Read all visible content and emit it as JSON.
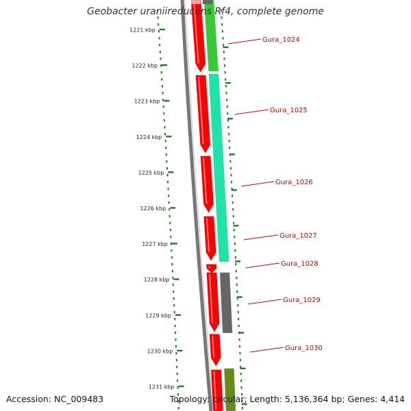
{
  "title": "Geobacter uraniireducens Rf4, complete genome",
  "accession": "Accession: NC_009483",
  "summary": "Topology: circular; Length: 5,136,364 bp; Genes: 4,414",
  "colors": {
    "forward_cds": "#ff0000",
    "backbone": "#777777",
    "tick": "#1f7a1f",
    "label": "#cc0000",
    "cog_light_green": "#33cc33",
    "cog_aqua": "#1ae6a8",
    "cog_gray": "#666666",
    "cog_olive": "#668b1a"
  },
  "ruler": {
    "unit": "kbp",
    "labels": [
      "1221 kbp",
      "1222 kbp",
      "1223 kbp",
      "1224 kbp",
      "1225 kbp",
      "1226 kbp",
      "1227 kbp",
      "1228 kbp",
      "1229 kbp",
      "1230 kbp",
      "1231 kbp"
    ]
  },
  "genes": [
    {
      "label": "Gura_1024"
    },
    {
      "label": "Gura_1025"
    },
    {
      "label": "Gura_1026"
    },
    {
      "label": "Gura_1027"
    },
    {
      "label": "Gura_1028"
    },
    {
      "label": "Gura_1029"
    },
    {
      "label": "Gura_1030"
    }
  ]
}
